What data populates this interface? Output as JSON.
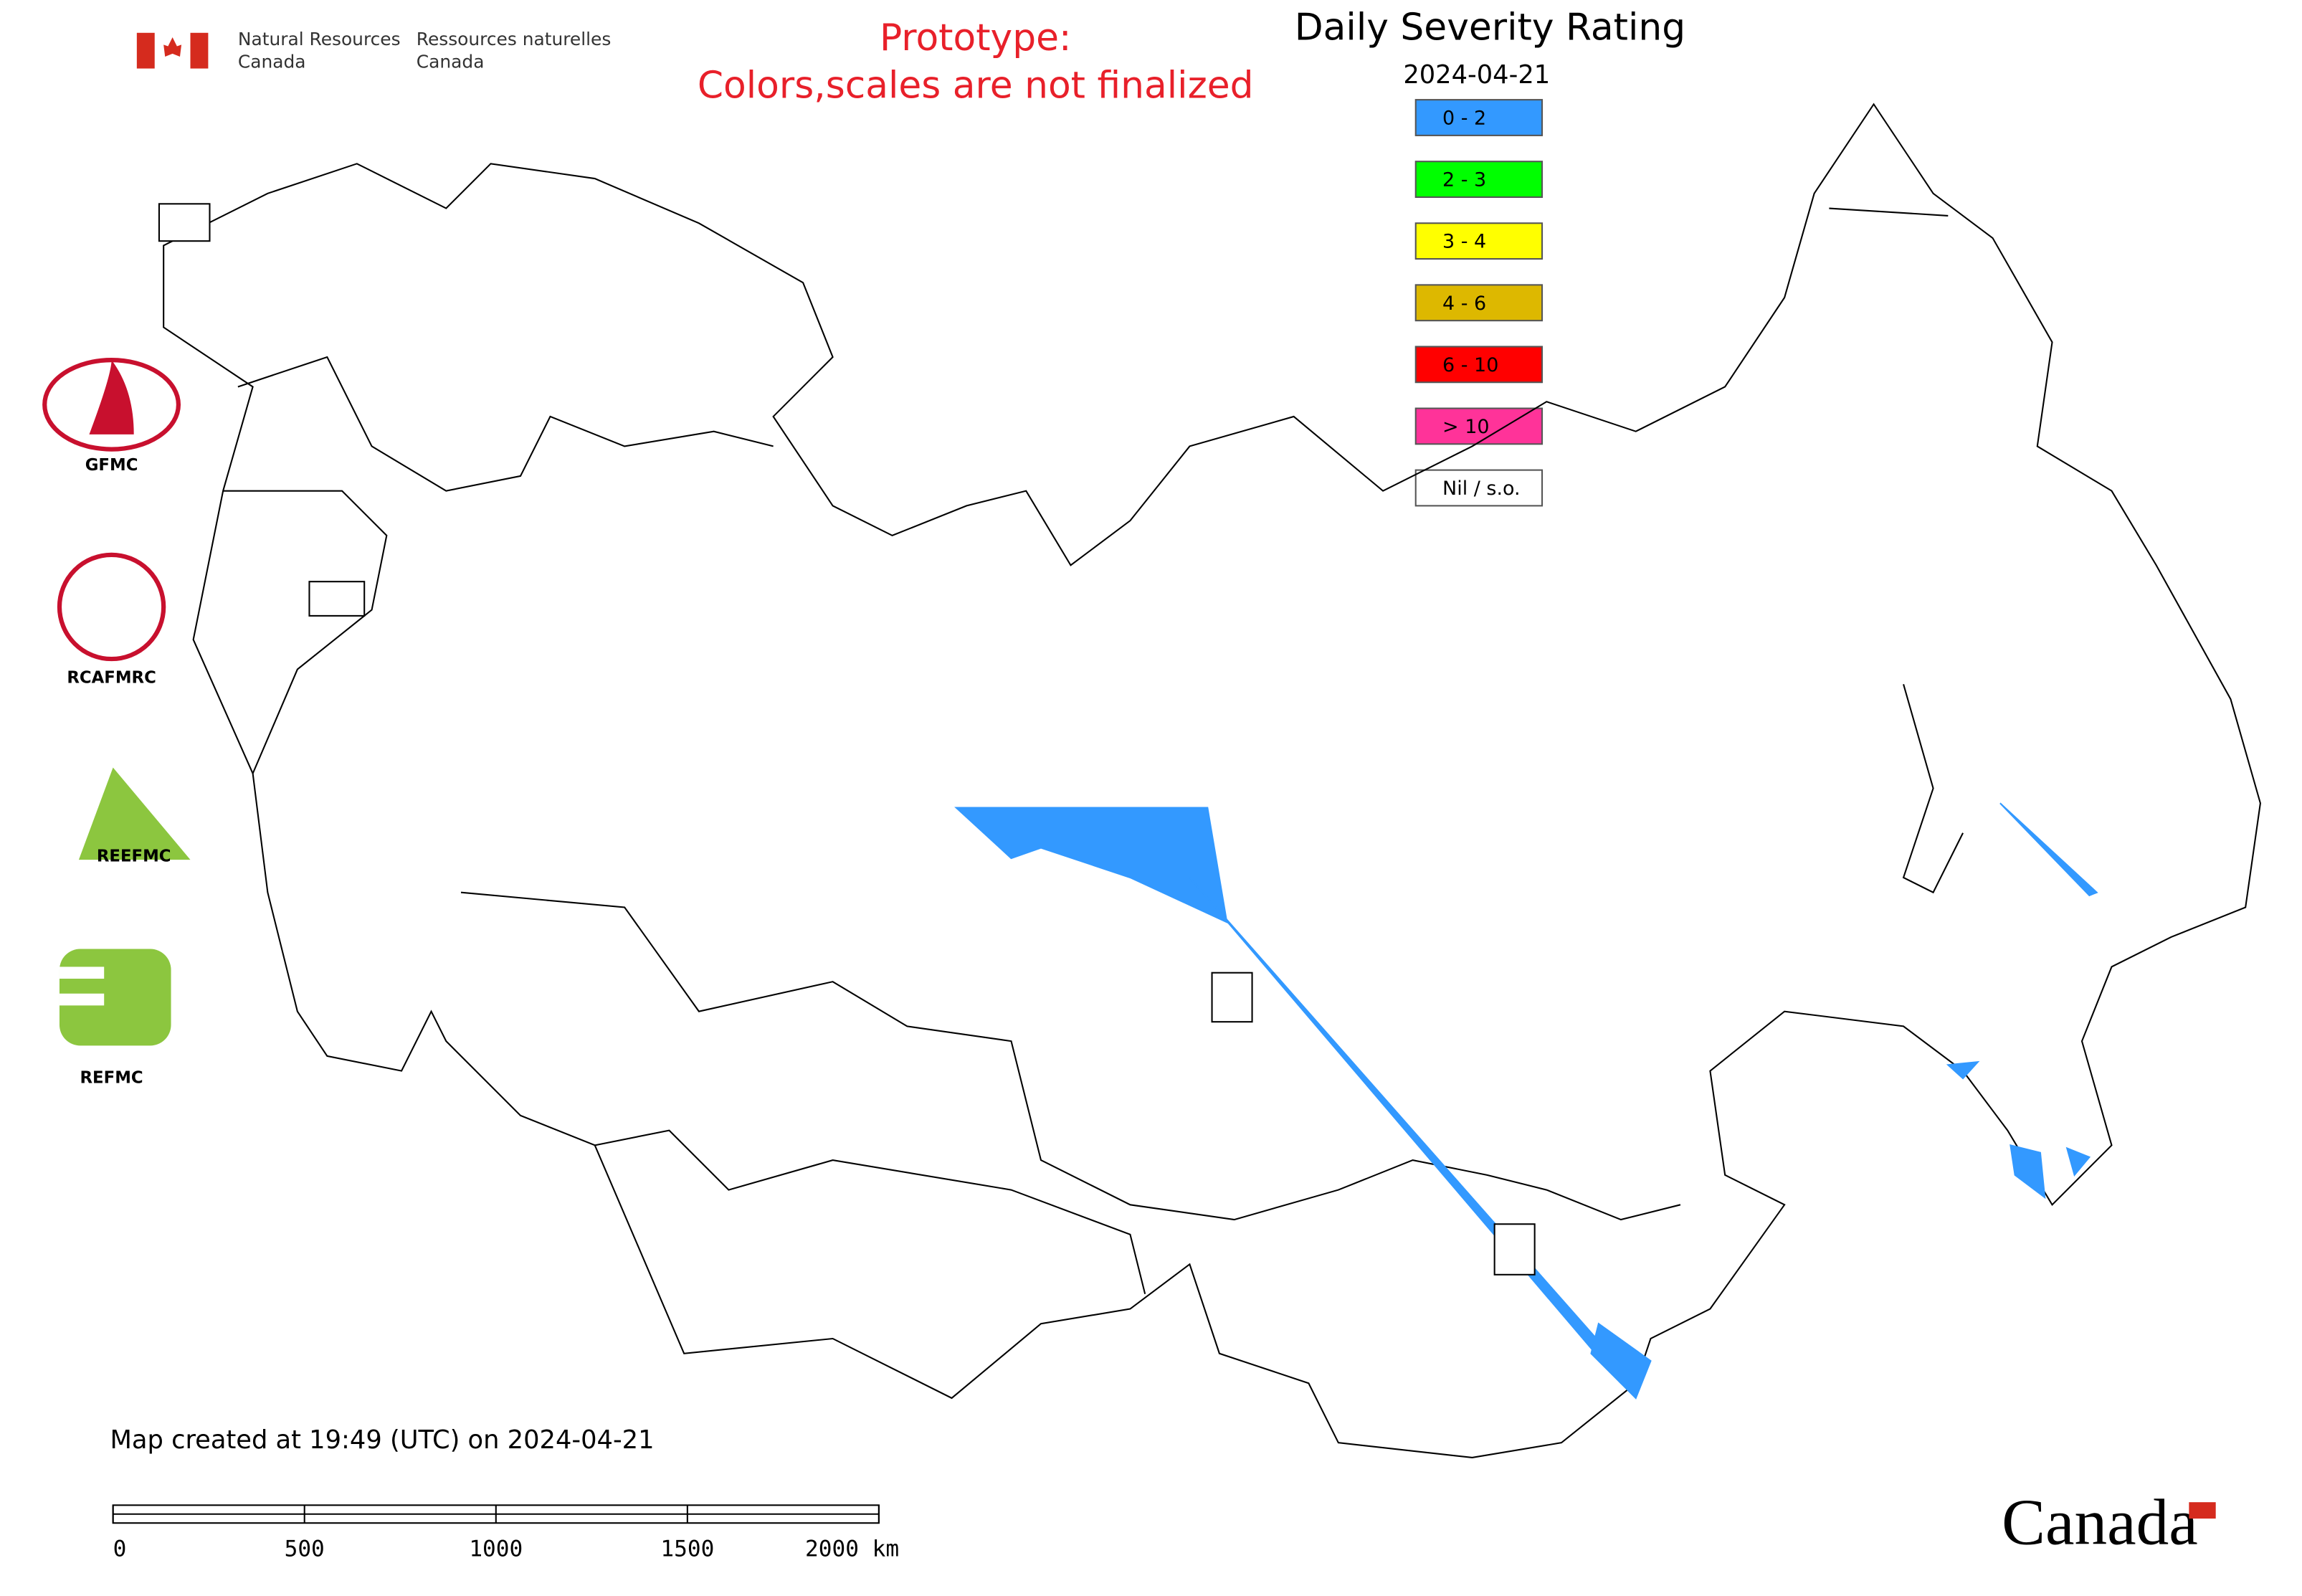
{
  "header": {
    "dept_en": [
      "Natural Resources",
      "Canada"
    ],
    "dept_fr": [
      "Ressources naturelles",
      "Canada"
    ]
  },
  "prototype": [
    "Prototype:",
    "Colors,scales are not finalized"
  ],
  "legend": {
    "title": "Daily Severity Rating",
    "date": "2024-04-21",
    "items": [
      {
        "label": "0 - 2",
        "color": "#3399ff"
      },
      {
        "label": "2 - 3",
        "color": "#00ff00"
      },
      {
        "label": "3 - 4",
        "color": "#ffff00"
      },
      {
        "label": "4 - 6",
        "color": "#ddb800"
      },
      {
        "label": "6 - 10",
        "color": "#ff0000"
      },
      {
        "label": "> 10",
        "color": "#ff3399"
      },
      {
        "label": "Nil / s.o.",
        "color": "#ffffff"
      }
    ]
  },
  "logos": [
    "GFMC",
    "RCAFMRC",
    "REEFMC",
    "REFMC"
  ],
  "footer": {
    "created": "Map created at 19:49 (UTC) on 2024-04-21",
    "scale": [
      "0",
      "500",
      "1000",
      "1500",
      "2000 km"
    ],
    "wordmark": "Canada"
  }
}
